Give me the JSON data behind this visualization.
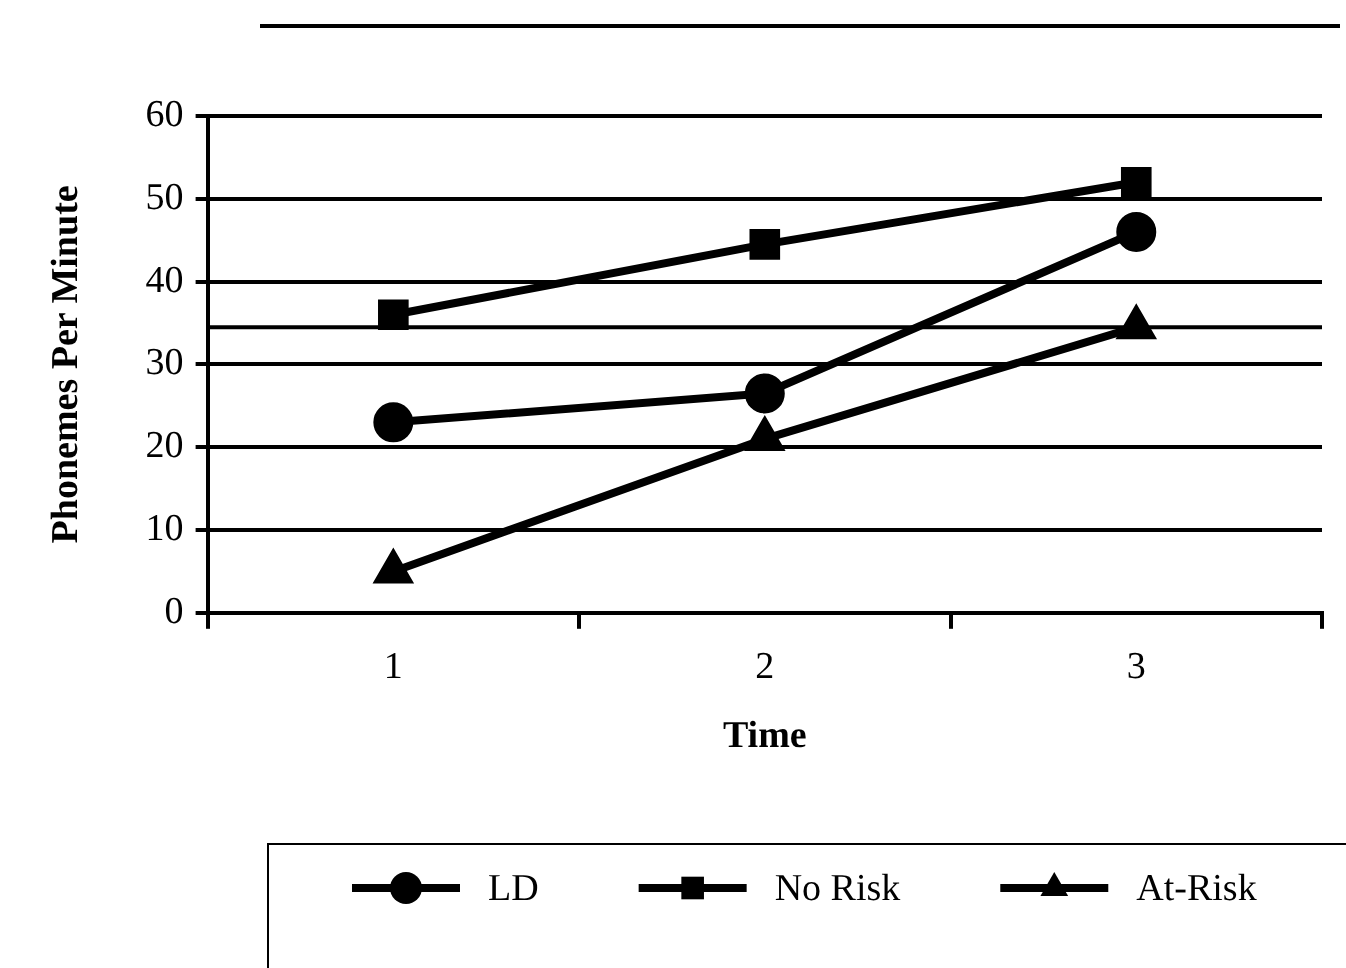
{
  "chart_data": {
    "type": "line",
    "xlabel": "Time",
    "ylabel": "Phonemes Per Minute",
    "categories": [
      "1",
      "2",
      "3"
    ],
    "series": [
      {
        "name": "LD",
        "color": "#000000",
        "marker": "circle",
        "values": [
          23,
          26.5,
          46
        ]
      },
      {
        "name": "No Risk",
        "color": "#000000",
        "marker": "square",
        "values": [
          36,
          44.5,
          52
        ]
      },
      {
        "name": "At-Risk",
        "color": "#000000",
        "marker": "triangle",
        "values": [
          5,
          21,
          34.5
        ]
      }
    ],
    "ylim": [
      0,
      60
    ],
    "yticks": [
      0,
      10,
      20,
      30,
      40,
      50,
      60
    ],
    "ref_lines": [
      {
        "axis": "y",
        "value": 34.5,
        "color": "#000000"
      }
    ],
    "grid": "y",
    "legend": "bottom"
  }
}
